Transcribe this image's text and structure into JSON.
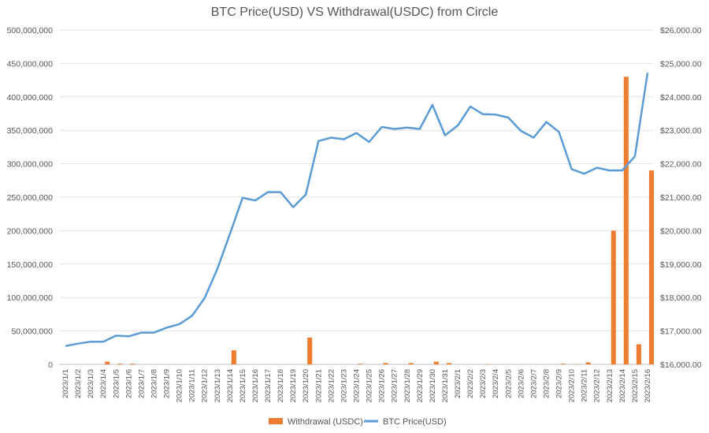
{
  "chart_data": {
    "type": "bar",
    "title": "BTC Price(USD) VS Withdrawal(USDC) from Circle",
    "categories": [
      "2023/1/1",
      "2023/1/2",
      "2023/1/3",
      "2023/1/4",
      "2023/1/5",
      "2023/1/6",
      "2023/1/7",
      "2023/1/8",
      "2023/1/9",
      "2023/1/10",
      "2023/1/11",
      "2023/1/12",
      "2023/1/13",
      "2023/1/14",
      "2023/1/15",
      "2023/1/16",
      "2023/1/17",
      "2023/1/18",
      "2023/1/19",
      "2023/1/20",
      "2023/1/21",
      "2023/1/22",
      "2023/1/23",
      "2023/1/24",
      "2023/1/25",
      "2023/1/26",
      "2023/1/27",
      "2023/1/28",
      "2023/1/29",
      "2023/1/30",
      "2023/1/31",
      "2023/2/1",
      "2023/2/2",
      "2023/2/3",
      "2023/2/4",
      "2023/2/5",
      "2023/2/6",
      "2023/2/7",
      "2023/2/8",
      "2023/2/9",
      "2023/2/10",
      "2023/2/11",
      "2023/2/12",
      "2023/2/13",
      "2023/2/14",
      "2023/2/15",
      "2023/2/16"
    ],
    "series": [
      {
        "name": "Withdrawal (USDC)",
        "chart_type": "bar",
        "axis": "left",
        "color": "#ED7D31",
        "values": [
          0,
          0,
          0,
          4000000,
          1000000,
          1000000,
          0,
          0,
          0,
          0,
          0,
          0,
          0,
          21000000,
          0,
          0,
          0,
          0,
          0,
          40000000,
          0,
          0,
          0,
          1000000,
          0,
          2000000,
          0,
          2000000,
          0,
          4000000,
          2000000,
          0,
          0,
          500000,
          0,
          0,
          0,
          0,
          0,
          1000000,
          500000,
          3000000,
          0,
          200000000,
          430000000,
          30000000,
          290000000
        ]
      },
      {
        "name": "BTC Price(USD)",
        "chart_type": "line",
        "axis": "right",
        "color": "#5B9BD5",
        "values": [
          16550,
          16620,
          16680,
          16680,
          16860,
          16840,
          16950,
          16950,
          17100,
          17200,
          17450,
          17980,
          18850,
          19900,
          20980,
          20900,
          21150,
          21150,
          20700,
          21080,
          22680,
          22780,
          22730,
          22920,
          22650,
          23100,
          23040,
          23080,
          23040,
          23760,
          22850,
          23140,
          23710,
          23480,
          23470,
          23380,
          22980,
          22780,
          23250,
          22950,
          21840,
          21700,
          21880,
          21800,
          21800,
          22220,
          24720
        ]
      }
    ],
    "y_left": {
      "ylim": [
        0,
        500000000
      ],
      "ticks": [
        0,
        50000000,
        100000000,
        150000000,
        200000000,
        250000000,
        300000000,
        350000000,
        400000000,
        450000000,
        500000000
      ],
      "tick_labels": [
        "0",
        "50,000,000",
        "100,000,000",
        "150,000,000",
        "200,000,000",
        "250,000,000",
        "300,000,000",
        "350,000,000",
        "400,000,000",
        "450,000,000",
        "500,000,000"
      ]
    },
    "y_right": {
      "ylim": [
        16000,
        26000
      ],
      "ticks": [
        16000,
        17000,
        18000,
        19000,
        20000,
        21000,
        22000,
        23000,
        24000,
        25000,
        26000
      ],
      "tick_labels": [
        "$16,000.00",
        "$17,000.00",
        "$18,000.00",
        "$19,000.00",
        "$20,000.00",
        "$21,000.00",
        "$22,000.00",
        "$23,000.00",
        "$24,000.00",
        "$25,000.00",
        "$26,000.00"
      ]
    },
    "grid": true,
    "legend_position": "bottom"
  }
}
